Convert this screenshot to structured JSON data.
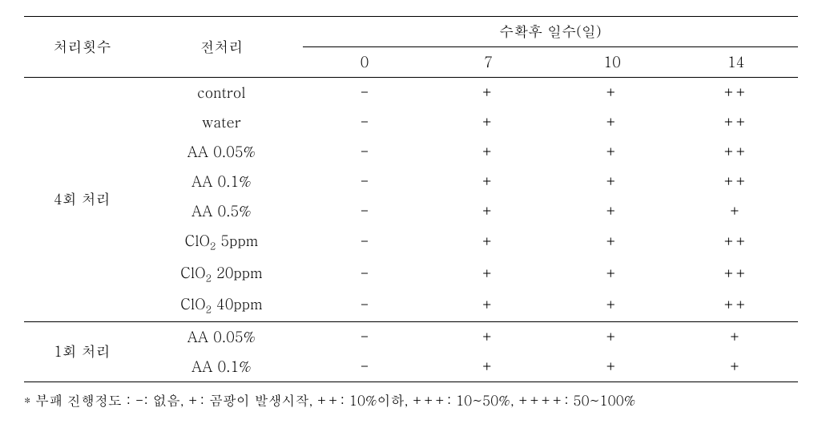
{
  "header": {
    "treatment_count": "처리횟수",
    "pretreatment": "전처리",
    "days_after_harvest": "수확후 일수(일)",
    "days": [
      "0",
      "7",
      "10",
      "14"
    ]
  },
  "groups": [
    {
      "label": "4회 처리",
      "rows": [
        {
          "name": "control",
          "sub": "",
          "tail": "",
          "vals": [
            "-",
            "+",
            "+",
            "++"
          ]
        },
        {
          "name": "water",
          "sub": "",
          "tail": "",
          "vals": [
            "-",
            "+",
            "+",
            "++"
          ]
        },
        {
          "name": "AA 0.05%",
          "sub": "",
          "tail": "",
          "vals": [
            "-",
            "+",
            "+",
            "++"
          ]
        },
        {
          "name": "AA 0.1%",
          "sub": "",
          "tail": "",
          "vals": [
            "-",
            "+",
            "+",
            "++"
          ]
        },
        {
          "name": "AA 0.5%",
          "sub": "",
          "tail": "",
          "vals": [
            "-",
            "+",
            "+",
            "+"
          ]
        },
        {
          "name": "ClO",
          "sub": "2",
          "tail": " 5ppm",
          "vals": [
            "-",
            "+",
            "+",
            "++"
          ]
        },
        {
          "name": "ClO",
          "sub": "2",
          "tail": " 20ppm",
          "vals": [
            "-",
            "+",
            "+",
            "++"
          ]
        },
        {
          "name": "ClO",
          "sub": "2",
          "tail": " 40ppm",
          "vals": [
            "-",
            "+",
            "+",
            "++"
          ]
        }
      ]
    },
    {
      "label": "1회 처리",
      "rows": [
        {
          "name": "AA 0.05%",
          "sub": "",
          "tail": "",
          "vals": [
            "-",
            "+",
            "+",
            "+"
          ]
        },
        {
          "name": "AA 0.1%",
          "sub": "",
          "tail": "",
          "vals": [
            "-",
            "+",
            "+",
            "+"
          ]
        }
      ]
    }
  ],
  "footnote": "* 부패 진행정도 : -: 없음, +: 곰팡이 발생시작, ++: 10%이하, +++: 10~50%, ++++: 50~100%"
}
